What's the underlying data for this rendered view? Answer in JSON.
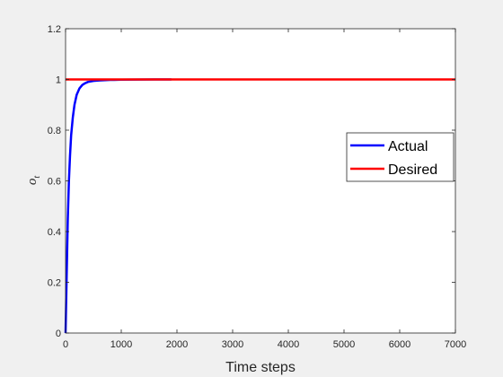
{
  "chart_data": {
    "type": "line",
    "xlabel": "Time steps",
    "ylabel": "o",
    "ylabel_subscript": "t",
    "xlim": [
      0,
      7000
    ],
    "ylim": [
      0,
      1.2
    ],
    "x_ticks": [
      0,
      1000,
      2000,
      3000,
      4000,
      5000,
      6000,
      7000
    ],
    "y_ticks": [
      0,
      0.2,
      0.4,
      0.6,
      0.8,
      1,
      1.2
    ],
    "x_tick_labels": [
      "0",
      "1000",
      "2000",
      "3000",
      "4000",
      "5000",
      "6000",
      "7000"
    ],
    "y_tick_labels": [
      "0",
      "0.2",
      "0.4",
      "0.6",
      "0.8",
      "1",
      "1.2"
    ],
    "grid": false,
    "legend_position": "right",
    "series": [
      {
        "name": "Actual",
        "color": "#0000ff",
        "x": [
          0,
          20,
          40,
          60,
          80,
          100,
          130,
          160,
          200,
          250,
          300,
          350,
          400,
          500,
          600,
          800,
          1000,
          1300,
          1600,
          1900
        ],
        "y": [
          0,
          0.23,
          0.45,
          0.6,
          0.7,
          0.78,
          0.85,
          0.9,
          0.94,
          0.965,
          0.978,
          0.985,
          0.99,
          0.994,
          0.996,
          0.998,
          0.999,
          0.9995,
          1.0,
          1.0
        ]
      },
      {
        "name": "Desired",
        "color": "#ff0000",
        "x": [
          0,
          7000
        ],
        "y": [
          1,
          1
        ]
      }
    ]
  }
}
